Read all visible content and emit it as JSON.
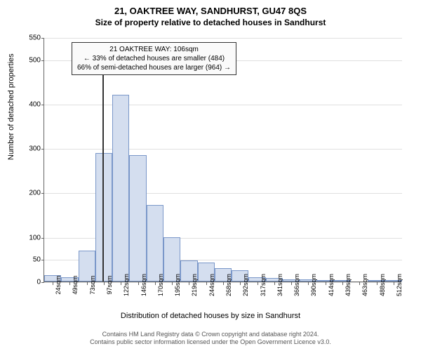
{
  "title": "21, OAKTREE WAY, SANDHURST, GU47 8QS",
  "subtitle": "Size of property relative to detached houses in Sandhurst",
  "ylabel": "Number of detached properties",
  "xlabel": "Distribution of detached houses by size in Sandhurst",
  "chart": {
    "type": "histogram",
    "ylim": [
      0,
      550
    ],
    "yticks": [
      0,
      50,
      100,
      200,
      300,
      400,
      500,
      550
    ],
    "xticks": [
      "24sqm",
      "49sqm",
      "73sqm",
      "97sqm",
      "122sqm",
      "146sqm",
      "170sqm",
      "195sqm",
      "219sqm",
      "244sqm",
      "268sqm",
      "292sqm",
      "317sqm",
      "341sqm",
      "366sqm",
      "390sqm",
      "414sqm",
      "439sqm",
      "463sqm",
      "488sqm",
      "512sqm"
    ],
    "values": [
      15,
      10,
      70,
      290,
      420,
      285,
      172,
      100,
      48,
      42,
      30,
      25,
      10,
      8,
      5,
      5,
      3,
      3,
      0,
      2,
      2
    ],
    "bar_color": "#d4deef",
    "bar_border": "#7a97c9",
    "grid_color": "#e0e0e0",
    "background_color": "#ffffff",
    "marker_x_index": 3.4
  },
  "annotation": {
    "line1": "21 OAKTREE WAY: 106sqm",
    "line2": "← 33% of detached houses are smaller (484)",
    "line3": "66% of semi-detached houses are larger (964) →"
  },
  "credit": {
    "line1": "Contains HM Land Registry data © Crown copyright and database right 2024.",
    "line2": "Contains public sector information licensed under the Open Government Licence v3.0."
  }
}
